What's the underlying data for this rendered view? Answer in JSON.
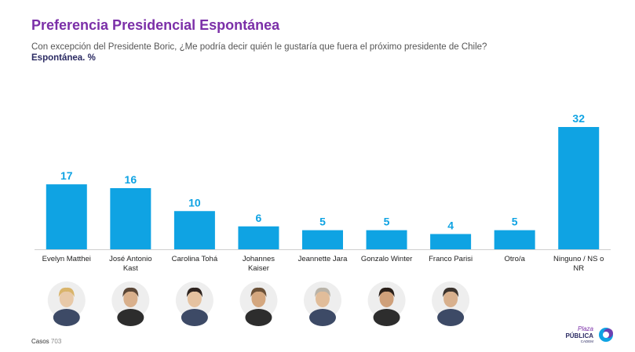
{
  "header": {
    "title": "Preferencia Presidencial Espontánea",
    "subtitle": "Con excepción del Presidente Boric, ¿Me podría decir quién le gustaría que fuera el próximo presidente de Chile?",
    "subtitle2": "Espontánea. %"
  },
  "footer": {
    "cases_label": "Casos",
    "cases_value": "703"
  },
  "logo": {
    "line1": "Plaza",
    "line2": "PÚBLICA",
    "line3": "CADEM"
  },
  "colors": {
    "bar": "#0fa3e3",
    "value_label": "#0fa3e3",
    "title": "#7b2fa8",
    "subtitle2": "#2b2b63"
  },
  "chart_data": {
    "type": "bar",
    "categories": [
      "Evelyn Matthei",
      "José Antonio Kast",
      "Carolina Tohá",
      "Johannes Kaiser",
      "Jeannette Jara",
      "Gonzalo Winter",
      "Franco Parisi",
      "Otro/a",
      "Ninguno / NS o NR"
    ],
    "category_lines": [
      [
        "Evelyn Matthei"
      ],
      [
        "José Antonio",
        "Kast"
      ],
      [
        "Carolina Tohá"
      ],
      [
        "Johannes",
        "Kaiser"
      ],
      [
        "Jeannette Jara"
      ],
      [
        "Gonzalo Winter"
      ],
      [
        "Franco Parisi"
      ],
      [
        "Otro/a"
      ],
      [
        "Ninguno / NS o",
        "NR"
      ]
    ],
    "values": [
      17,
      16,
      10,
      6,
      5,
      5,
      4,
      5,
      32
    ],
    "has_photo": [
      true,
      true,
      true,
      true,
      true,
      true,
      true,
      false,
      false
    ],
    "ylim": [
      0,
      32
    ],
    "grid": false,
    "legend": "none"
  }
}
